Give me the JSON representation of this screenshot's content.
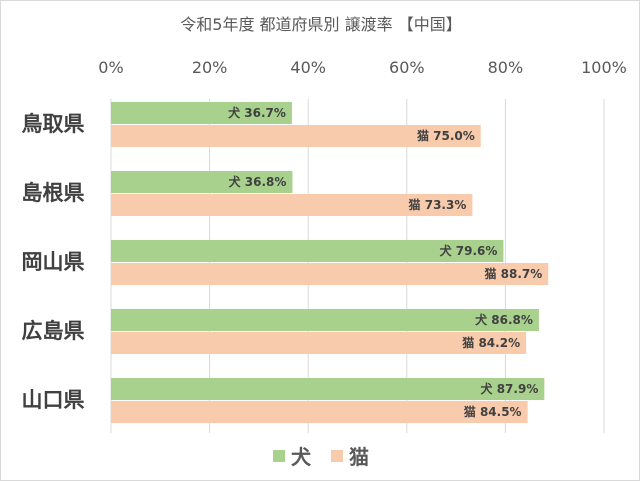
{
  "chart_data": {
    "type": "bar",
    "orientation": "horizontal",
    "title": "令和5年度 都道府県別 譲渡率 【中国】",
    "categories": [
      "鳥取県",
      "島根県",
      "岡山県",
      "広島県",
      "山口県"
    ],
    "series": [
      {
        "name": "犬",
        "color": "#a9d18e",
        "values": [
          36.7,
          36.8,
          79.6,
          86.8,
          87.9
        ]
      },
      {
        "name": "猫",
        "color": "#f8cbad",
        "values": [
          75.0,
          73.3,
          88.7,
          84.2,
          84.5
        ]
      }
    ],
    "xlim": [
      0,
      100
    ],
    "xticks": [
      "0%",
      "20%",
      "40%",
      "60%",
      "80%",
      "100%"
    ],
    "xlabel": "",
    "ylabel": "",
    "value_suffix": "%",
    "grid": true,
    "legend_position": "bottom"
  }
}
